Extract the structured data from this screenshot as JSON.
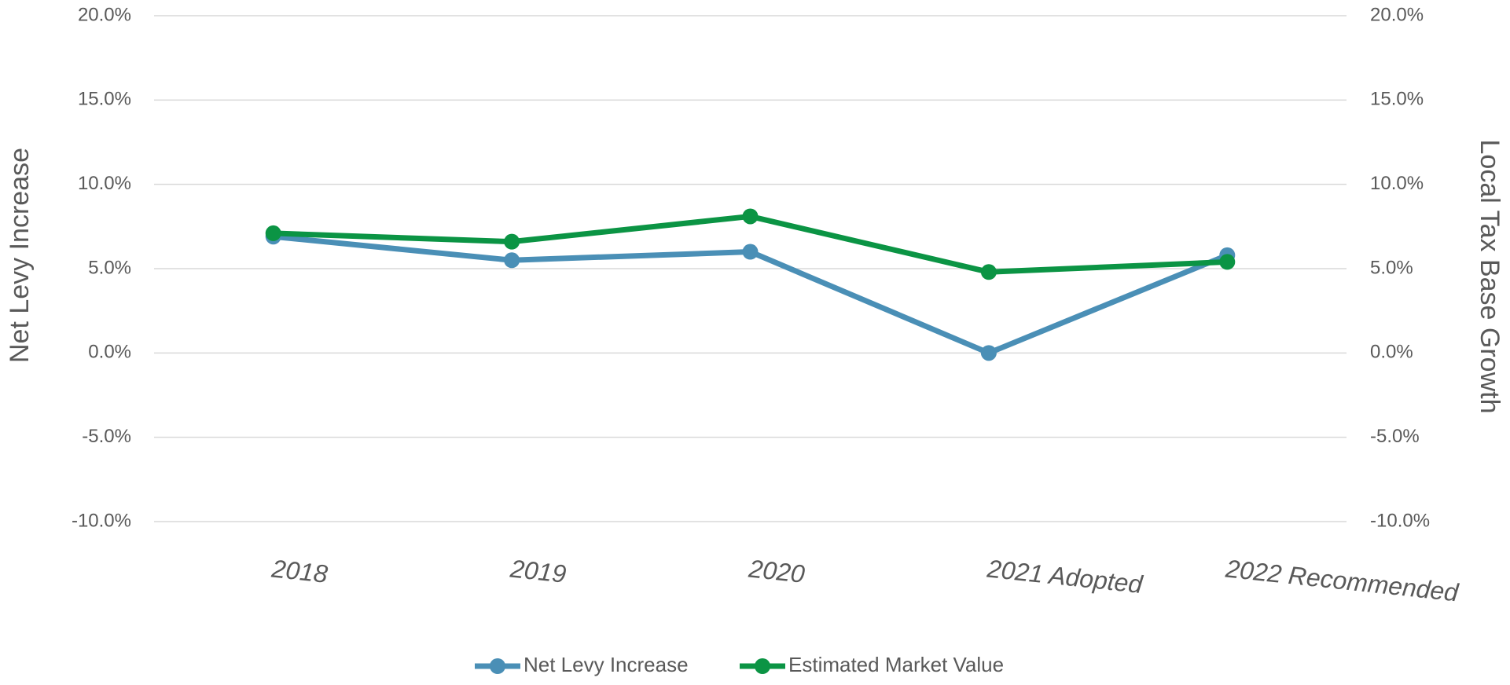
{
  "chart_data": {
    "type": "line",
    "y_axis_label": "Net Levy Increase",
    "y2_axis_label": "Local Tax Base Growth",
    "categories": [
      "2018",
      "2019",
      "2020",
      "2021 Adopted",
      "2022 Recommended"
    ],
    "series": [
      {
        "name": "Net Levy Increase",
        "color": "#4a8fb6",
        "values": [
          6.9,
          5.5,
          6.0,
          0.0,
          5.8
        ]
      },
      {
        "name": "Estimated Market Value",
        "color": "#0b9444",
        "axis": "y2",
        "values": [
          7.1,
          6.6,
          8.1,
          4.8,
          5.4
        ]
      }
    ],
    "ylim": [
      -10,
      20
    ],
    "yticks": [
      {
        "value": -10,
        "label": "-10.0%"
      },
      {
        "value": -5,
        "label": "-5.0%"
      },
      {
        "value": 0,
        "label": "0.0%"
      },
      {
        "value": 5,
        "label": "5.0%"
      },
      {
        "value": 10,
        "label": "10.0%"
      },
      {
        "value": 15,
        "label": "15.0%"
      },
      {
        "value": 20,
        "label": "20.0%"
      }
    ],
    "y2lim": [
      -10,
      20
    ],
    "y2ticks": [
      {
        "value": -10,
        "label": "-10.0%"
      },
      {
        "value": -5,
        "label": "-5.0%"
      },
      {
        "value": 0,
        "label": "0.0%"
      },
      {
        "value": 5,
        "label": "5.0%"
      },
      {
        "value": 10,
        "label": "10.0%"
      },
      {
        "value": 15,
        "label": "15.0%"
      },
      {
        "value": 20,
        "label": "20.0%"
      }
    ],
    "grid": true,
    "legend": "bottom"
  }
}
